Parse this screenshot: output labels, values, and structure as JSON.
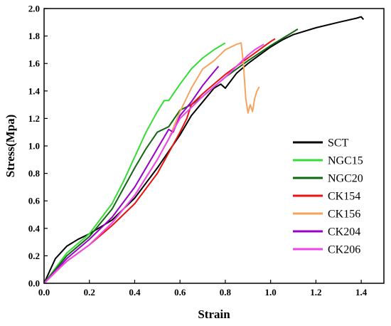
{
  "chart_data": {
    "type": "line",
    "title": "",
    "xlabel": "Strain",
    "ylabel": "Stress(Mpa)",
    "xlim": [
      0.0,
      1.5
    ],
    "ylim": [
      0.0,
      2.0
    ],
    "xticks": [
      "0.0",
      "0.2",
      "0.4",
      "0.6",
      "0.8",
      "1.0",
      "1.2",
      "1.4"
    ],
    "yticks": [
      "0.0",
      "0.2",
      "0.4",
      "0.6",
      "0.8",
      "1.0",
      "1.2",
      "1.4",
      "1.6",
      "1.8",
      "2.0"
    ],
    "grid": false,
    "legend_position": "bottom-right",
    "series": [
      {
        "name": "SCT",
        "color": "#000000",
        "x": [
          0.0,
          0.05,
          0.1,
          0.15,
          0.2,
          0.3,
          0.4,
          0.5,
          0.6,
          0.65,
          0.7,
          0.75,
          0.78,
          0.8,
          0.85,
          0.9,
          0.95,
          1.0,
          1.05,
          1.1,
          1.2,
          1.3,
          1.38,
          1.4,
          1.41
        ],
        "y": [
          0.0,
          0.18,
          0.27,
          0.32,
          0.36,
          0.46,
          0.62,
          0.84,
          1.08,
          1.22,
          1.32,
          1.42,
          1.45,
          1.42,
          1.53,
          1.6,
          1.66,
          1.72,
          1.77,
          1.81,
          1.86,
          1.9,
          1.93,
          1.94,
          1.92
        ]
      },
      {
        "name": "NGC15",
        "color": "#33dd33",
        "x": [
          0.0,
          0.1,
          0.2,
          0.3,
          0.35,
          0.4,
          0.45,
          0.5,
          0.53,
          0.55,
          0.6,
          0.65,
          0.7,
          0.75,
          0.8
        ],
        "y": [
          0.0,
          0.22,
          0.36,
          0.58,
          0.74,
          0.92,
          1.1,
          1.25,
          1.33,
          1.33,
          1.45,
          1.56,
          1.64,
          1.7,
          1.75
        ]
      },
      {
        "name": "NGC20",
        "color": "#116611",
        "x": [
          0.0,
          0.1,
          0.2,
          0.3,
          0.4,
          0.45,
          0.5,
          0.55,
          0.6,
          0.65,
          0.7,
          0.8,
          0.9,
          1.0,
          1.05,
          1.1,
          1.12
        ],
        "y": [
          0.0,
          0.2,
          0.34,
          0.54,
          0.84,
          0.98,
          1.1,
          1.14,
          1.26,
          1.3,
          1.36,
          1.5,
          1.62,
          1.73,
          1.78,
          1.83,
          1.85
        ]
      },
      {
        "name": "CK154",
        "color": "#ee1111",
        "x": [
          0.0,
          0.1,
          0.2,
          0.3,
          0.4,
          0.5,
          0.55,
          0.6,
          0.63,
          0.65,
          0.7,
          0.8,
          0.9,
          1.0,
          1.02
        ],
        "y": [
          0.0,
          0.16,
          0.28,
          0.42,
          0.58,
          0.8,
          0.95,
          1.1,
          1.2,
          1.3,
          1.38,
          1.52,
          1.64,
          1.76,
          1.78
        ]
      },
      {
        "name": "CK156",
        "color": "#f4a460",
        "x": [
          0.0,
          0.1,
          0.2,
          0.3,
          0.4,
          0.5,
          0.55,
          0.6,
          0.65,
          0.7,
          0.75,
          0.8,
          0.85,
          0.87,
          0.88,
          0.89,
          0.9,
          0.91,
          0.92,
          0.93,
          0.94,
          0.95
        ],
        "y": [
          0.0,
          0.16,
          0.28,
          0.44,
          0.64,
          0.9,
          1.05,
          1.25,
          1.42,
          1.56,
          1.62,
          1.7,
          1.74,
          1.75,
          1.6,
          1.35,
          1.24,
          1.3,
          1.25,
          1.35,
          1.4,
          1.43
        ]
      },
      {
        "name": "CK204",
        "color": "#9900cc",
        "x": [
          0.0,
          0.1,
          0.2,
          0.3,
          0.4,
          0.5,
          0.55,
          0.57,
          0.6,
          0.65,
          0.7,
          0.75,
          0.77
        ],
        "y": [
          0.0,
          0.18,
          0.32,
          0.48,
          0.7,
          0.98,
          1.12,
          1.1,
          1.22,
          1.32,
          1.44,
          1.54,
          1.58
        ]
      },
      {
        "name": "CK206",
        "color": "#ee44ee",
        "x": [
          0.0,
          0.06,
          0.1,
          0.2,
          0.3,
          0.4,
          0.5,
          0.6,
          0.7,
          0.8,
          0.85,
          0.9,
          0.93,
          0.95,
          0.97
        ],
        "y": [
          0.0,
          0.1,
          0.16,
          0.28,
          0.44,
          0.64,
          0.9,
          1.2,
          1.36,
          1.5,
          1.58,
          1.66,
          1.7,
          1.72,
          1.74
        ]
      }
    ]
  }
}
